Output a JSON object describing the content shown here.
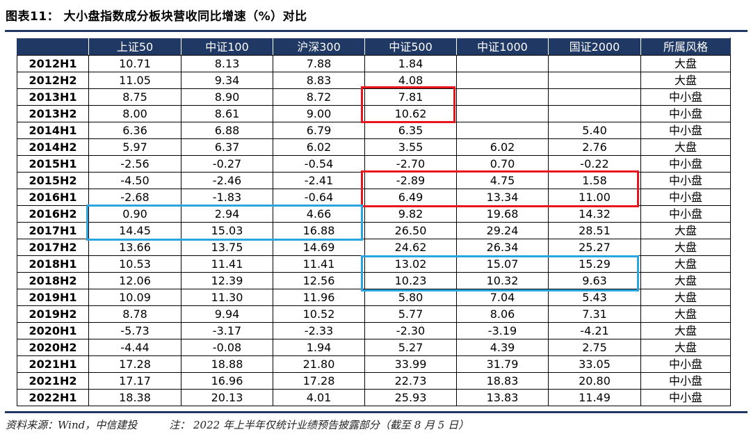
{
  "title": "图表11：  大小盘指数成分板块营收同比增速（%）对比",
  "table": {
    "headers": [
      "",
      "上证50",
      "中证100",
      "沪深300",
      "中证500",
      "中证1000",
      "国证2000",
      "所属风格"
    ],
    "rows": [
      [
        "2012H1",
        "10.71",
        "8.13",
        "7.88",
        "1.84",
        "",
        "",
        "大盘"
      ],
      [
        "2012H2",
        "11.05",
        "9.34",
        "8.83",
        "4.08",
        "",
        "",
        "大盘"
      ],
      [
        "2013H1",
        "8.75",
        "8.90",
        "8.72",
        "7.81",
        "",
        "",
        "中小盘"
      ],
      [
        "2013H2",
        "8.00",
        "8.61",
        "9.00",
        "10.62",
        "",
        "",
        "中小盘"
      ],
      [
        "2014H1",
        "6.36",
        "6.88",
        "6.79",
        "6.35",
        "",
        "5.40",
        "中小盘"
      ],
      [
        "2014H2",
        "5.97",
        "6.37",
        "6.02",
        "3.55",
        "6.02",
        "2.76",
        "大盘"
      ],
      [
        "2015H1",
        "-2.56",
        "-0.27",
        "-0.54",
        "-2.70",
        "0.70",
        "-0.22",
        "中小盘"
      ],
      [
        "2015H2",
        "-4.50",
        "-2.46",
        "-2.41",
        "-2.89",
        "4.75",
        "1.58",
        "中小盘"
      ],
      [
        "2016H1",
        "-2.68",
        "-1.83",
        "-0.64",
        "6.49",
        "13.34",
        "11.00",
        "中小盘"
      ],
      [
        "2016H2",
        "0.90",
        "2.94",
        "4.66",
        "9.82",
        "19.68",
        "14.32",
        "中小盘"
      ],
      [
        "2017H1",
        "14.45",
        "15.03",
        "16.88",
        "26.50",
        "29.24",
        "28.51",
        "大盘"
      ],
      [
        "2017H2",
        "13.66",
        "13.75",
        "14.69",
        "24.62",
        "26.34",
        "25.27",
        "大盘"
      ],
      [
        "2018H1",
        "10.53",
        "11.41",
        "11.41",
        "13.02",
        "15.07",
        "15.29",
        "大盘"
      ],
      [
        "2018H2",
        "12.06",
        "12.39",
        "12.56",
        "10.23",
        "10.32",
        "9.63",
        "大盘"
      ],
      [
        "2019H1",
        "10.09",
        "11.30",
        "11.96",
        "5.80",
        "7.04",
        "5.43",
        "大盘"
      ],
      [
        "2019H2",
        "8.78",
        "9.94",
        "10.52",
        "5.77",
        "8.06",
        "7.31",
        "大盘"
      ],
      [
        "2020H1",
        "-5.73",
        "-3.17",
        "-2.33",
        "-2.30",
        "-3.19",
        "-4.21",
        "大盘"
      ],
      [
        "2020H2",
        "-4.44",
        "-0.08",
        "1.94",
        "5.27",
        "4.39",
        "2.75",
        "大盘"
      ],
      [
        "2021H1",
        "17.28",
        "18.88",
        "21.80",
        "33.99",
        "31.79",
        "33.05",
        "中小盘"
      ],
      [
        "2021H2",
        "17.17",
        "16.96",
        "17.28",
        "22.73",
        "18.83",
        "20.80",
        "中小盘"
      ],
      [
        "2022H1",
        "18.38",
        "20.13",
        "4.01",
        "25.93",
        "13.83",
        "11.49",
        "中小盘"
      ]
    ]
  },
  "highlight_colors": {
    "red": "#e8161c",
    "blue": "#29a6e0"
  },
  "header_color": "#1f3864",
  "footer": {
    "source": "资料来源：Wind，中信建投",
    "note": "注：  2022 年上半年仅统计业绩预告披露部分（截至 8 月 5 日）"
  }
}
